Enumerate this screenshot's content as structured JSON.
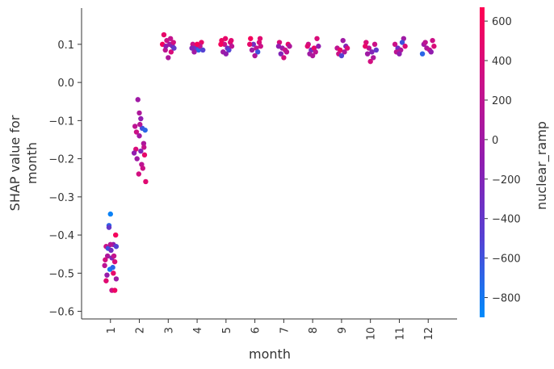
{
  "chart_data": {
    "type": "scatter",
    "title": "",
    "xlabel": "month",
    "ylabel": [
      "SHAP value for",
      "month"
    ],
    "x_categories": [
      "1",
      "2",
      "3",
      "4",
      "5",
      "6",
      "7",
      "8",
      "9",
      "10",
      "11",
      "12"
    ],
    "xlim": [
      0.0,
      13.0
    ],
    "ylim": [
      -0.62,
      0.195
    ],
    "y_ticks": [
      {
        "value": 0.1,
        "label": "0.1"
      },
      {
        "value": 0.0,
        "label": "0.0"
      },
      {
        "value": -0.1,
        "label": "−0.1"
      },
      {
        "value": -0.2,
        "label": "−0.2"
      },
      {
        "value": -0.3,
        "label": "−0.3"
      },
      {
        "value": -0.4,
        "label": "−0.4"
      },
      {
        "value": -0.5,
        "label": "−0.5"
      },
      {
        "value": -0.6,
        "label": "−0.6"
      }
    ],
    "grid": false,
    "colorbar": {
      "label": "nuclear_ramp",
      "min": -900,
      "max": 670,
      "ticks": [
        {
          "value": 600,
          "label": "600"
        },
        {
          "value": 400,
          "label": "400"
        },
        {
          "value": 200,
          "label": "200"
        },
        {
          "value": 0,
          "label": "0"
        },
        {
          "value": -200,
          "label": "−200"
        },
        {
          "value": -400,
          "label": "−400"
        },
        {
          "value": -600,
          "label": "−600"
        },
        {
          "value": -800,
          "label": "−800"
        }
      ],
      "colors": [
        "#008bfb",
        "#5442d4",
        "#8f1db0",
        "#c8128a",
        "#ff0052"
      ]
    },
    "points": [
      {
        "x": 0.95,
        "y": -0.375,
        "c": -700
      },
      {
        "x": 1.0,
        "y": -0.345,
        "c": -850
      },
      {
        "x": 0.85,
        "y": -0.43,
        "c": 300
      },
      {
        "x": 1.1,
        "y": -0.425,
        "c": -100
      },
      {
        "x": 1.2,
        "y": -0.43,
        "c": -500
      },
      {
        "x": 0.9,
        "y": -0.455,
        "c": 100
      },
      {
        "x": 1.05,
        "y": -0.46,
        "c": -200
      },
      {
        "x": 1.15,
        "y": -0.47,
        "c": 400
      },
      {
        "x": 0.8,
        "y": -0.48,
        "c": 200
      },
      {
        "x": 0.98,
        "y": -0.49,
        "c": -800
      },
      {
        "x": 1.1,
        "y": -0.5,
        "c": 500
      },
      {
        "x": 1.2,
        "y": -0.515,
        "c": 0
      },
      {
        "x": 0.85,
        "y": -0.52,
        "c": 450
      },
      {
        "x": 1.05,
        "y": -0.545,
        "c": 300
      },
      {
        "x": 1.15,
        "y": -0.545,
        "c": 550
      },
      {
        "x": 0.92,
        "y": -0.435,
        "c": -600
      },
      {
        "x": 1.02,
        "y": -0.44,
        "c": -300
      },
      {
        "x": 1.12,
        "y": -0.455,
        "c": 250
      },
      {
        "x": 1.18,
        "y": -0.4,
        "c": 600
      },
      {
        "x": 0.88,
        "y": -0.505,
        "c": -50
      },
      {
        "x": 0.95,
        "y": -0.38,
        "c": -400
      },
      {
        "x": 1.08,
        "y": -0.485,
        "c": -700
      },
      {
        "x": 0.82,
        "y": -0.465,
        "c": 350
      },
      {
        "x": 1.0,
        "y": -0.425,
        "c": 150
      },
      {
        "x": 1.95,
        "y": -0.045,
        "c": 0
      },
      {
        "x": 2.0,
        "y": -0.08,
        "c": 100
      },
      {
        "x": 2.05,
        "y": -0.095,
        "c": -100
      },
      {
        "x": 1.85,
        "y": -0.115,
        "c": 200
      },
      {
        "x": 2.1,
        "y": -0.12,
        "c": -600
      },
      {
        "x": 2.2,
        "y": -0.125,
        "c": -700
      },
      {
        "x": 1.9,
        "y": -0.13,
        "c": 300
      },
      {
        "x": 2.0,
        "y": -0.14,
        "c": 0
      },
      {
        "x": 2.15,
        "y": -0.16,
        "c": 100
      },
      {
        "x": 1.88,
        "y": -0.175,
        "c": 400
      },
      {
        "x": 2.05,
        "y": -0.18,
        "c": -200
      },
      {
        "x": 2.18,
        "y": -0.19,
        "c": 500
      },
      {
        "x": 1.92,
        "y": -0.2,
        "c": 0
      },
      {
        "x": 2.08,
        "y": -0.215,
        "c": 200
      },
      {
        "x": 2.12,
        "y": -0.225,
        "c": 300
      },
      {
        "x": 1.98,
        "y": -0.24,
        "c": 350
      },
      {
        "x": 2.22,
        "y": -0.26,
        "c": 450
      },
      {
        "x": 2.02,
        "y": -0.11,
        "c": 150
      },
      {
        "x": 1.82,
        "y": -0.185,
        "c": -100
      },
      {
        "x": 2.16,
        "y": -0.17,
        "c": 250
      },
      {
        "x": 2.85,
        "y": 0.125,
        "c": 500
      },
      {
        "x": 2.95,
        "y": 0.11,
        "c": 300
      },
      {
        "x": 3.05,
        "y": 0.1,
        "c": 0
      },
      {
        "x": 3.15,
        "y": 0.095,
        "c": -200
      },
      {
        "x": 2.9,
        "y": 0.085,
        "c": 200
      },
      {
        "x": 3.1,
        "y": 0.08,
        "c": 400
      },
      {
        "x": 3.0,
        "y": 0.065,
        "c": 100
      },
      {
        "x": 3.2,
        "y": 0.09,
        "c": -400
      },
      {
        "x": 2.8,
        "y": 0.1,
        "c": 600
      },
      {
        "x": 3.08,
        "y": 0.115,
        "c": 250
      },
      {
        "x": 2.92,
        "y": 0.095,
        "c": -100
      },
      {
        "x": 3.18,
        "y": 0.105,
        "c": 350
      },
      {
        "x": 3.85,
        "y": 0.1,
        "c": 300
      },
      {
        "x": 3.95,
        "y": 0.09,
        "c": -400
      },
      {
        "x": 4.05,
        "y": 0.085,
        "c": -700
      },
      {
        "x": 4.15,
        "y": 0.105,
        "c": 500
      },
      {
        "x": 3.9,
        "y": 0.08,
        "c": 0
      },
      {
        "x": 4.1,
        "y": 0.095,
        "c": 200
      },
      {
        "x": 4.2,
        "y": 0.085,
        "c": -500
      },
      {
        "x": 4.0,
        "y": 0.1,
        "c": 600
      },
      {
        "x": 3.82,
        "y": 0.09,
        "c": -200
      },
      {
        "x": 4.85,
        "y": 0.11,
        "c": 550
      },
      {
        "x": 4.95,
        "y": 0.1,
        "c": 300
      },
      {
        "x": 5.05,
        "y": 0.09,
        "c": -300
      },
      {
        "x": 5.15,
        "y": 0.105,
        "c": 400
      },
      {
        "x": 4.9,
        "y": 0.08,
        "c": 0
      },
      {
        "x": 5.1,
        "y": 0.085,
        "c": -500
      },
      {
        "x": 5.2,
        "y": 0.095,
        "c": 200
      },
      {
        "x": 5.0,
        "y": 0.075,
        "c": -100
      },
      {
        "x": 4.82,
        "y": 0.1,
        "c": 600
      },
      {
        "x": 5.18,
        "y": 0.11,
        "c": 450
      },
      {
        "x": 4.98,
        "y": 0.115,
        "c": 500
      },
      {
        "x": 5.85,
        "y": 0.115,
        "c": 600
      },
      {
        "x": 5.95,
        "y": 0.1,
        "c": -300
      },
      {
        "x": 6.05,
        "y": 0.09,
        "c": 200
      },
      {
        "x": 6.15,
        "y": 0.105,
        "c": 400
      },
      {
        "x": 5.9,
        "y": 0.085,
        "c": 0
      },
      {
        "x": 6.1,
        "y": 0.08,
        "c": -600
      },
      {
        "x": 6.2,
        "y": 0.095,
        "c": 300
      },
      {
        "x": 6.0,
        "y": 0.07,
        "c": 100
      },
      {
        "x": 5.82,
        "y": 0.1,
        "c": 500
      },
      {
        "x": 6.18,
        "y": 0.115,
        "c": 450
      },
      {
        "x": 6.85,
        "y": 0.105,
        "c": 400
      },
      {
        "x": 6.95,
        "y": 0.09,
        "c": 0
      },
      {
        "x": 7.05,
        "y": 0.085,
        "c": 300
      },
      {
        "x": 7.15,
        "y": 0.1,
        "c": 500
      },
      {
        "x": 6.9,
        "y": 0.075,
        "c": -200
      },
      {
        "x": 7.1,
        "y": 0.08,
        "c": 200
      },
      {
        "x": 7.2,
        "y": 0.095,
        "c": 100
      },
      {
        "x": 7.0,
        "y": 0.065,
        "c": 350
      },
      {
        "x": 6.82,
        "y": 0.095,
        "c": -100
      },
      {
        "x": 7.85,
        "y": 0.1,
        "c": 300
      },
      {
        "x": 7.95,
        "y": 0.085,
        "c": -300
      },
      {
        "x": 8.05,
        "y": 0.09,
        "c": 500
      },
      {
        "x": 8.15,
        "y": 0.115,
        "c": 400
      },
      {
        "x": 7.9,
        "y": 0.075,
        "c": 0
      },
      {
        "x": 8.1,
        "y": 0.08,
        "c": 200
      },
      {
        "x": 8.2,
        "y": 0.095,
        "c": -100
      },
      {
        "x": 8.0,
        "y": 0.07,
        "c": 100
      },
      {
        "x": 7.82,
        "y": 0.095,
        "c": 450
      },
      {
        "x": 8.85,
        "y": 0.09,
        "c": 200
      },
      {
        "x": 8.95,
        "y": 0.085,
        "c": 500
      },
      {
        "x": 9.05,
        "y": 0.11,
        "c": 0
      },
      {
        "x": 9.15,
        "y": 0.095,
        "c": -200
      },
      {
        "x": 8.9,
        "y": 0.075,
        "c": 300
      },
      {
        "x": 9.1,
        "y": 0.08,
        "c": 100
      },
      {
        "x": 9.2,
        "y": 0.09,
        "c": 400
      },
      {
        "x": 9.0,
        "y": 0.07,
        "c": -500
      },
      {
        "x": 9.85,
        "y": 0.105,
        "c": 400
      },
      {
        "x": 9.95,
        "y": 0.09,
        "c": 200
      },
      {
        "x": 10.05,
        "y": 0.08,
        "c": -200
      },
      {
        "x": 10.15,
        "y": 0.1,
        "c": 300
      },
      {
        "x": 9.9,
        "y": 0.075,
        "c": 0
      },
      {
        "x": 10.1,
        "y": 0.065,
        "c": 100
      },
      {
        "x": 10.2,
        "y": 0.085,
        "c": -400
      },
      {
        "x": 10.0,
        "y": 0.055,
        "c": 350
      },
      {
        "x": 9.82,
        "y": 0.095,
        "c": 500
      },
      {
        "x": 10.85,
        "y": 0.1,
        "c": 300
      },
      {
        "x": 10.95,
        "y": 0.09,
        "c": -300
      },
      {
        "x": 11.05,
        "y": 0.085,
        "c": 100
      },
      {
        "x": 11.15,
        "y": 0.115,
        "c": 0
      },
      {
        "x": 10.9,
        "y": 0.08,
        "c": 200
      },
      {
        "x": 11.1,
        "y": 0.105,
        "c": -600
      },
      {
        "x": 11.2,
        "y": 0.095,
        "c": 400
      },
      {
        "x": 11.0,
        "y": 0.075,
        "c": -100
      },
      {
        "x": 11.85,
        "y": 0.1,
        "c": 0
      },
      {
        "x": 11.95,
        "y": 0.09,
        "c": 100
      },
      {
        "x": 12.05,
        "y": 0.085,
        "c": 200
      },
      {
        "x": 12.15,
        "y": 0.11,
        "c": 300
      },
      {
        "x": 11.8,
        "y": 0.075,
        "c": -700
      },
      {
        "x": 12.1,
        "y": 0.08,
        "c": -100
      },
      {
        "x": 12.2,
        "y": 0.095,
        "c": 400
      },
      {
        "x": 11.9,
        "y": 0.105,
        "c": 200
      }
    ]
  }
}
